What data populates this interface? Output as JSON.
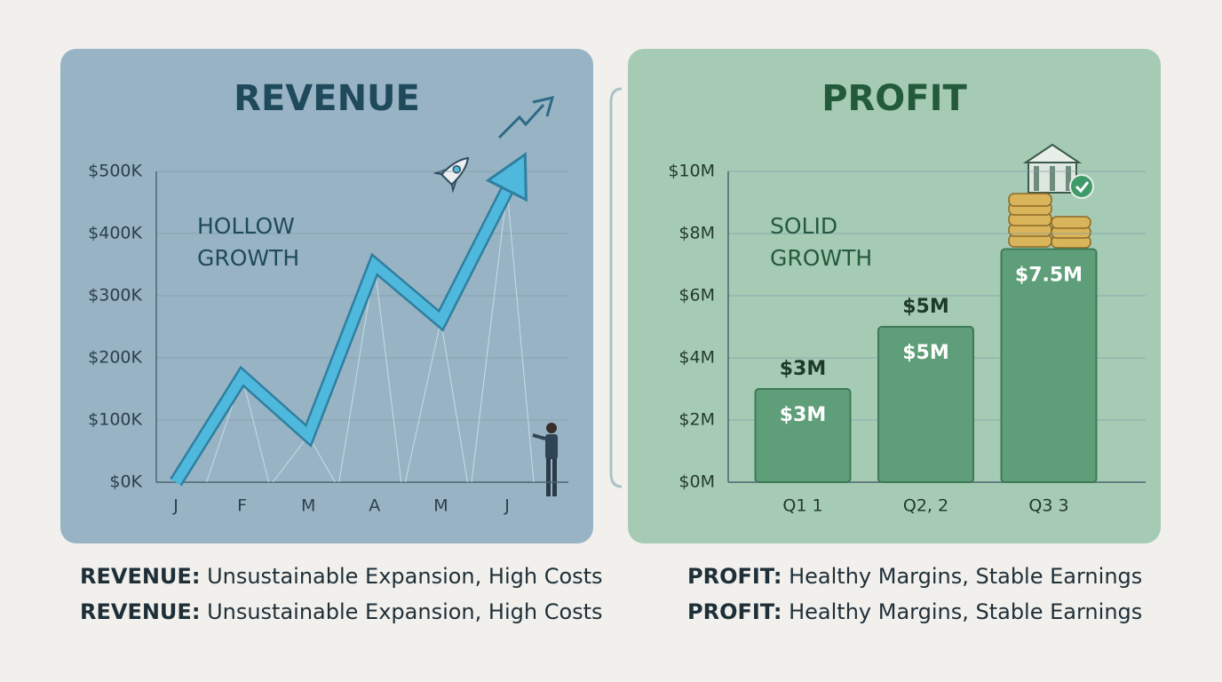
{
  "chart_data": [
    {
      "type": "line",
      "title": "REVENUE",
      "annotation": [
        "HOLLOW",
        "GROWTH"
      ],
      "categories": [
        "J",
        "F",
        "M",
        "A",
        "M",
        "J"
      ],
      "values": [
        0,
        170,
        75,
        350,
        260,
        470
      ],
      "color": "#4fb8dd",
      "ylim": [
        0,
        500
      ],
      "yticks": [
        {
          "value": 0,
          "label": "$0K"
        },
        {
          "value": 100,
          "label": "$100K"
        },
        {
          "value": 200,
          "label": "$200K"
        },
        {
          "value": 300,
          "label": "$300K"
        },
        {
          "value": 400,
          "label": "$400K"
        },
        {
          "value": 500,
          "label": "$500K"
        }
      ],
      "grid": true,
      "captions": [
        {
          "label": "REVENUE:",
          "text": "Unsustainable Expansion, High Costs"
        },
        {
          "label": "REVENUE:",
          "text": "Unsustainable Expansion, High Costs"
        }
      ]
    },
    {
      "type": "bar",
      "title": "PROFIT",
      "annotation": [
        "SOLID",
        "GROWTH"
      ],
      "categories": [
        "Q1 1",
        "Q2, 2",
        "Q3 3"
      ],
      "values": [
        3,
        5,
        7.5
      ],
      "value_labels": [
        "$3M",
        "$5M",
        "$7.5M"
      ],
      "value_labels_above": [
        "$3M",
        "$5M"
      ],
      "color": "#5e9e78",
      "ylim": [
        0,
        10
      ],
      "yticks": [
        {
          "value": 0,
          "label": "$0M"
        },
        {
          "value": 2,
          "label": "$2M"
        },
        {
          "value": 4,
          "label": "$4M"
        },
        {
          "value": 6,
          "label": "$6M"
        },
        {
          "value": 8,
          "label": "$8M"
        },
        {
          "value": 10,
          "label": "$10M"
        }
      ],
      "grid": true,
      "captions": [
        {
          "label": "PROFIT:",
          "text": "Healthy Margins, Stable Earnings"
        },
        {
          "label": "PROFIT:",
          "text": "Healthy Margins, Stable Earnings"
        }
      ]
    }
  ]
}
